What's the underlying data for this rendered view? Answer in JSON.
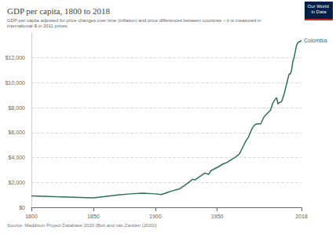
{
  "chart_data": {
    "type": "line",
    "title": "GDP per capita, 1800 to 2018",
    "subtitle": "GDP per capita adjusted for price changes over time (inflation) and price differences between countries – it is measured in international-$ in 2011 prices.",
    "source": "Source: Maddison Project Database 2020 (Bolt and van Zanden (2020))",
    "logo": "Our World in Data",
    "x": [
      1800,
      1820,
      1850,
      1870,
      1880,
      1890,
      1900,
      1905,
      1910,
      1913,
      1920,
      1925,
      1929,
      1930,
      1932,
      1935,
      1940,
      1943,
      1945,
      1950,
      1955,
      1958,
      1960,
      1965,
      1968,
      1970,
      1973,
      1975,
      1978,
      1980,
      1982,
      1985,
      1988,
      1990,
      1993,
      1995,
      1997,
      1998,
      1999,
      2000,
      2002,
      2004,
      2006,
      2008,
      2009,
      2010,
      2011,
      2012,
      2013,
      2014,
      2015,
      2016,
      2017,
      2018
    ],
    "series": [
      {
        "name": "Colombia",
        "color": "#2f6f5e",
        "values": [
          920,
          850,
          760,
          1000,
          1080,
          1130,
          1080,
          1020,
          1200,
          1300,
          1500,
          1850,
          2150,
          2250,
          2200,
          2400,
          2750,
          2650,
          2950,
          3200,
          3500,
          3600,
          3750,
          4050,
          4300,
          4700,
          5300,
          5600,
          6300,
          6600,
          6700,
          6700,
          7300,
          7500,
          7800,
          8400,
          8700,
          8800,
          8300,
          8400,
          8500,
          9100,
          9900,
          10700,
          10700,
          11000,
          11700,
          12000,
          12500,
          13000,
          13200,
          13300,
          13300,
          13400
        ]
      }
    ],
    "xlim": [
      1800,
      2018
    ],
    "xticks": [
      1800,
      1850,
      1900,
      1950,
      2018
    ],
    "ylim": [
      0,
      14000
    ],
    "yticks": [
      {
        "value": 0,
        "label": "$0"
      },
      {
        "value": 2000,
        "label": "$2,000"
      },
      {
        "value": 4000,
        "label": "$4,000"
      },
      {
        "value": 6000,
        "label": "$6,000"
      },
      {
        "value": 8000,
        "label": "$8,000"
      },
      {
        "value": 10000,
        "label": "$10,000"
      },
      {
        "value": 12000,
        "label": "$12,000"
      }
    ],
    "grid": true
  }
}
